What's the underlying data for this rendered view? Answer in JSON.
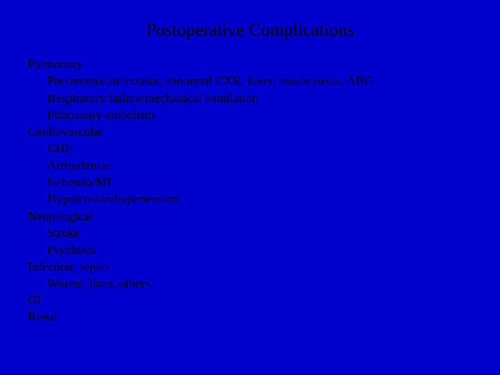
{
  "slide": {
    "title": "Postoperative Complications",
    "background_color": "#0000cc",
    "text_color": "#000000",
    "title_fontsize": 26,
    "body_fontsize": 18,
    "font_family": "Times New Roman",
    "sections": {
      "pulmonary": {
        "label": "Pulmonary",
        "items": [
          "Pneumonia/atelectasis: abnormal CXR, fever, leukocytosis, ABG",
          "Respiratory failure/mechanical ventilation",
          "Pulmonary embolism"
        ]
      },
      "cardiovascular": {
        "label": "Cardiovascular",
        "items": [
          "CHF",
          "Arrhythmias",
          "Ischemia/MI",
          "Hypotension/hypertension"
        ]
      },
      "neurological": {
        "label": "Neurological",
        "items": [
          "Stroke",
          "Psychosis"
        ]
      },
      "infection": {
        "label": "Infection, sepsis",
        "items": [
          "Wound, lines, others"
        ]
      },
      "gi": {
        "label": "GI",
        "items": []
      },
      "renal": {
        "label": "Renal",
        "items": []
      }
    }
  }
}
